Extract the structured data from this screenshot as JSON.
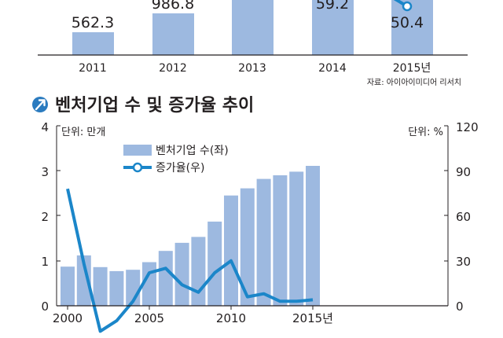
{
  "top_chart": {
    "categories": [
      "2011",
      "2012",
      "2013",
      "2014",
      "2015년"
    ],
    "bar_labels": [
      "562.3",
      "986.8",
      "",
      "59.2",
      "50.4"
    ],
    "source": "자료: 아이아이미디어 리서치"
  },
  "bottom_chart": {
    "title": "벤처기업 수 및 증가율 추이",
    "title_icon": "arrow-circle-icon",
    "left_unit": "단위: 만개",
    "right_unit": "단위: %"
  },
  "colors": {
    "bar": "#9db9e0",
    "line": "#1b86c9",
    "text": "#231f20",
    "icon": "#2b7bbf"
  },
  "chart_data": [
    {
      "type": "bar",
      "title": "",
      "categories": [
        "2011",
        "2012",
        "2013",
        "2014",
        "2015년"
      ],
      "data_labels": [
        "562.3",
        "986.8",
        "",
        "59.2",
        "50.4"
      ],
      "note": "top chart is cropped at the upper edge of the image"
    },
    {
      "type": "bar+line",
      "title": "벤처기업 수 및 증가율 추이",
      "x": [
        2000,
        2001,
        2002,
        2003,
        2004,
        2005,
        2006,
        2007,
        2008,
        2009,
        2010,
        2011,
        2012,
        2013,
        2014,
        2015
      ],
      "x_tick_labels": [
        "2000",
        "2005",
        "2010",
        "2015년"
      ],
      "series": [
        {
          "name": "벤처기업 수(좌)",
          "type": "bar",
          "axis": "left",
          "values": [
            0.87,
            1.12,
            0.86,
            0.77,
            0.8,
            0.97,
            1.22,
            1.4,
            1.53,
            1.87,
            2.45,
            2.61,
            2.82,
            2.9,
            2.98,
            3.11
          ]
        },
        {
          "name": "증가율(우)",
          "type": "line",
          "axis": "right",
          "values": [
            78,
            28,
            -17,
            -10,
            3,
            22,
            25,
            14,
            9,
            22,
            30,
            6,
            8,
            3,
            3,
            4
          ]
        }
      ],
      "left_axis": {
        "label": "단위: 만개",
        "ylim": [
          0,
          4
        ],
        "ticks": [
          0,
          1,
          2,
          3,
          4
        ]
      },
      "right_axis": {
        "label": "단위: %",
        "ylim": [
          0,
          120
        ],
        "ticks": [
          0,
          30,
          60,
          90,
          120
        ]
      },
      "legend": "top-left",
      "grid": false
    }
  ]
}
